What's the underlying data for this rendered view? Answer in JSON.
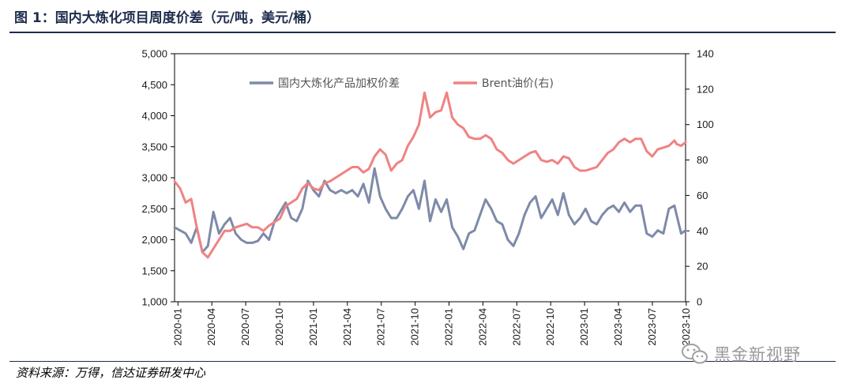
{
  "header": {
    "title": "图 1：国内大炼化项目周度价差（元/吨，美元/桶）"
  },
  "footer": {
    "source": "资料来源：万得，信达证券研发中心",
    "watermark": "黑金新视野",
    "watermark_icon": "wechat-icon"
  },
  "chart_data": {
    "type": "line",
    "title": "",
    "x_tick_labels": [
      "2020-01",
      "2020-04",
      "2020-07",
      "2020-10",
      "2021-01",
      "2021-04",
      "2021-07",
      "2021-10",
      "2022-01",
      "2022-04",
      "2022-07",
      "2022-10",
      "2023-01",
      "2023-04",
      "2023-07",
      "2023-10"
    ],
    "x_range": [
      0,
      46
    ],
    "ylim_left": [
      1000,
      5000
    ],
    "yticks_left": [
      "1,000",
      "1,500",
      "2,000",
      "2,500",
      "3,000",
      "3,500",
      "4,000",
      "4,500",
      "5,000"
    ],
    "ylim_right": [
      0,
      140
    ],
    "yticks_right": [
      "0",
      "20",
      "40",
      "60",
      "80",
      "100",
      "120",
      "140"
    ],
    "grid": false,
    "legend_position": "top",
    "series": [
      {
        "name": "国内大炼化产品加权价差",
        "axis": "left",
        "color": "#7e8aa8",
        "x": [
          0,
          0.5,
          1,
          1.5,
          2,
          2.5,
          3,
          3.5,
          4,
          4.5,
          5,
          5.5,
          6,
          6.5,
          7,
          7.5,
          8,
          8.5,
          9,
          9.5,
          10,
          10.5,
          11,
          11.5,
          12,
          12.5,
          13,
          13.5,
          14,
          14.5,
          15,
          15.5,
          16,
          16.5,
          17,
          17.5,
          18,
          18.5,
          19,
          19.5,
          20,
          20.5,
          21,
          21.5,
          22,
          22.5,
          23,
          23.5,
          24,
          24.5,
          25,
          25.5,
          26,
          26.5,
          27,
          27.5,
          28,
          28.5,
          29,
          29.5,
          30,
          30.5,
          31,
          31.5,
          32,
          32.5,
          33,
          33.5,
          34,
          34.5,
          35,
          35.5,
          36,
          36.5,
          37,
          37.5,
          38,
          38.5,
          39,
          39.5,
          40,
          40.5,
          41,
          41.5,
          42,
          42.5,
          43,
          43.5,
          44,
          44.5,
          45,
          45.2,
          45.6,
          46
        ],
        "y": [
          2200,
          2150,
          2100,
          1950,
          2200,
          1800,
          1900,
          2450,
          2100,
          2250,
          2350,
          2100,
          2000,
          1950,
          1950,
          1980,
          2100,
          2000,
          2300,
          2450,
          2600,
          2350,
          2300,
          2500,
          2950,
          2800,
          2700,
          2950,
          2800,
          2750,
          2800,
          2750,
          2800,
          2700,
          2900,
          2600,
          3150,
          2700,
          2500,
          2350,
          2350,
          2500,
          2700,
          2800,
          2500,
          2950,
          2300,
          2650,
          2450,
          2650,
          2200,
          2050,
          1850,
          2100,
          2150,
          2400,
          2650,
          2500,
          2300,
          2250,
          2000,
          1900,
          2100,
          2400,
          2600,
          2700,
          2350,
          2500,
          2650,
          2400,
          2750,
          2400,
          2250,
          2350,
          2500,
          2300,
          2250,
          2400,
          2500,
          2550,
          2450,
          2600,
          2450,
          2550,
          2550,
          2100,
          2050,
          2150,
          2100,
          2500,
          2550,
          2400,
          2100,
          2150
        ]
      },
      {
        "name": "Brent油价(右)",
        "axis": "right",
        "color": "#f08282",
        "x": [
          0,
          0.5,
          1,
          1.5,
          2,
          2.5,
          3,
          3.5,
          4,
          4.5,
          5,
          5.5,
          6,
          6.5,
          7,
          7.5,
          8,
          8.5,
          9,
          9.5,
          10,
          10.5,
          11,
          11.5,
          12,
          12.5,
          13,
          13.5,
          14,
          14.5,
          15,
          15.5,
          16,
          16.5,
          17,
          17.5,
          18,
          18.5,
          19,
          19.5,
          20,
          20.5,
          21,
          21.5,
          22,
          22.5,
          23,
          23.5,
          24,
          24.5,
          25,
          25.5,
          26,
          26.5,
          27,
          27.5,
          28,
          28.5,
          29,
          29.5,
          30,
          30.5,
          31,
          31.5,
          32,
          32.5,
          33,
          33.5,
          34,
          34.5,
          35,
          35.5,
          36,
          36.5,
          37,
          37.5,
          38,
          38.5,
          39,
          39.5,
          40,
          40.5,
          41,
          41.5,
          42,
          42.5,
          43,
          43.5,
          44,
          44.5,
          45,
          45.2,
          45.6,
          46
        ],
        "y": [
          68,
          64,
          56,
          58,
          42,
          28,
          25,
          30,
          35,
          40,
          40,
          42,
          43,
          44,
          42,
          42,
          40,
          43,
          45,
          47,
          54,
          56,
          58,
          64,
          67,
          64,
          63,
          67,
          68,
          70,
          72,
          74,
          76,
          76,
          73,
          75,
          82,
          86,
          83,
          74,
          78,
          80,
          88,
          93,
          100,
          118,
          104,
          107,
          108,
          118,
          104,
          100,
          98,
          93,
          92,
          92,
          94,
          92,
          86,
          84,
          80,
          78,
          80,
          82,
          84,
          85,
          80,
          79,
          80,
          78,
          82,
          81,
          76,
          74,
          74,
          75,
          76,
          80,
          84,
          86,
          90,
          92,
          90,
          92,
          92,
          85,
          82,
          86,
          87,
          88,
          91,
          89,
          88,
          90
        ]
      }
    ]
  }
}
